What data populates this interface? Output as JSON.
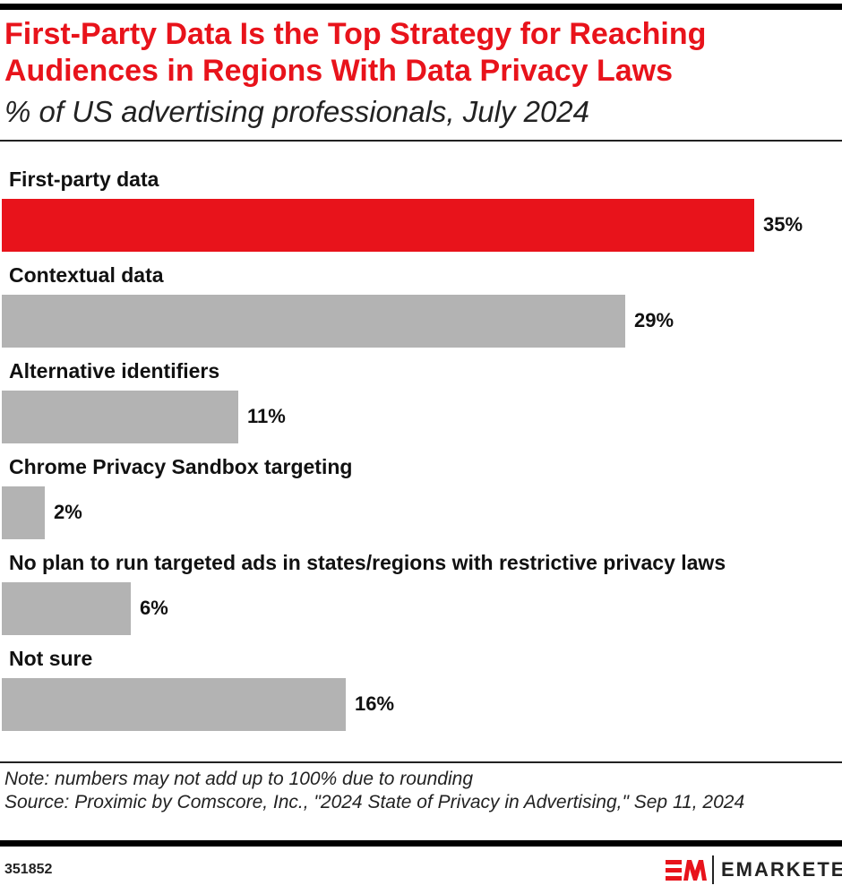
{
  "title": "First-Party Data Is the Top Strategy for Reaching Audiences in Regions With Data Privacy Laws",
  "subtitle": "% of US advertising professionals, July 2024",
  "note": "Note: numbers may not add up to 100% due to rounding",
  "source": "Source: Proximic by Comscore, Inc., \"2024 State of Privacy in Advertising,\" Sep 11, 2024",
  "chart_id": "351852",
  "logo_text": "EMARKETER",
  "chart_data": {
    "type": "bar",
    "orientation": "horizontal",
    "categories": [
      "First-party data",
      "Contextual data",
      "Alternative identifiers",
      "Chrome Privacy Sandbox targeting",
      "No plan to run targeted ads in states/regions with restrictive privacy laws",
      "Not sure"
    ],
    "values": [
      35,
      29,
      11,
      2,
      6,
      16
    ],
    "labels": [
      "35%",
      "29%",
      "11%",
      "2%",
      "6%",
      "16%"
    ],
    "colors": [
      "#e8131b",
      "#b3b3b3",
      "#b3b3b3",
      "#b3b3b3",
      "#b3b3b3",
      "#b3b3b3"
    ],
    "xlim": [
      0,
      35
    ],
    "grid": false
  }
}
